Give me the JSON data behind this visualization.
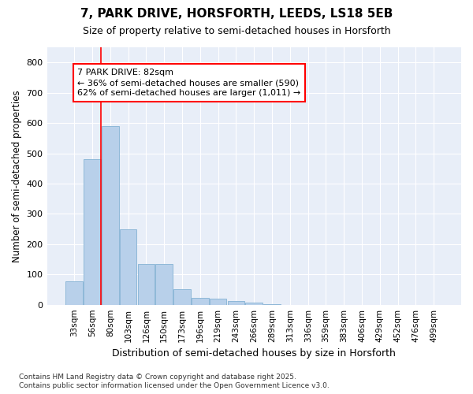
{
  "title": "7, PARK DRIVE, HORSFORTH, LEEDS, LS18 5EB",
  "subtitle": "Size of property relative to semi-detached houses in Horsforth",
  "xlabel": "Distribution of semi-detached houses by size in Horsforth",
  "ylabel": "Number of semi-detached properties",
  "categories": [
    "33sqm",
    "56sqm",
    "80sqm",
    "103sqm",
    "126sqm",
    "150sqm",
    "173sqm",
    "196sqm",
    "219sqm",
    "243sqm",
    "266sqm",
    "289sqm",
    "313sqm",
    "336sqm",
    "359sqm",
    "383sqm",
    "406sqm",
    "429sqm",
    "452sqm",
    "476sqm",
    "499sqm"
  ],
  "values": [
    77,
    480,
    590,
    250,
    135,
    135,
    52,
    22,
    20,
    13,
    7,
    2,
    0,
    0,
    0,
    0,
    0,
    0,
    0,
    0,
    0
  ],
  "bar_color": "#b8d0ea",
  "bar_edge_color": "#8fb8d8",
  "property_line_x": 1.5,
  "annotation_line1": "7 PARK DRIVE: 82sqm",
  "annotation_line2": "← 36% of semi-detached houses are smaller (590)",
  "annotation_line3": "62% of semi-detached houses are larger (1,011) →",
  "ylim": [
    0,
    850
  ],
  "yticks": [
    0,
    100,
    200,
    300,
    400,
    500,
    600,
    700,
    800
  ],
  "figure_bg": "#ffffff",
  "plot_bg": "#e8eef8",
  "grid_color": "#ffffff",
  "footer_line1": "Contains HM Land Registry data © Crown copyright and database right 2025.",
  "footer_line2": "Contains public sector information licensed under the Open Government Licence v3.0."
}
